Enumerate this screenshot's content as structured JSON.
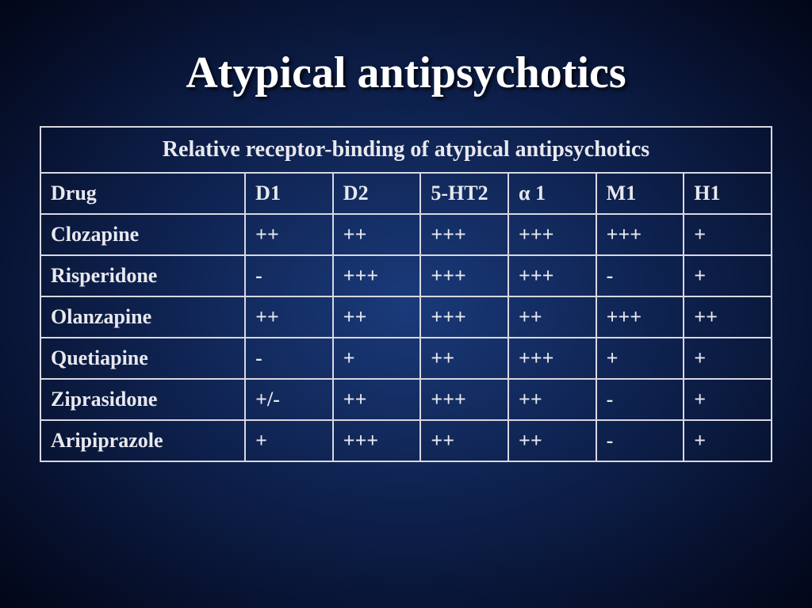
{
  "title": "Atypical antipsychotics",
  "table": {
    "subtitle": "Relative receptor-binding of atypical antipsychotics",
    "columns": [
      "Drug",
      "D1",
      "D2",
      "5-HT2",
      "α 1",
      "M1",
      "H1"
    ],
    "rows": [
      [
        "Clozapine",
        "++",
        "++",
        "+++",
        "+++",
        "+++",
        "+"
      ],
      [
        "Risperidone",
        "-",
        "+++",
        "+++",
        "+++",
        "-",
        "+"
      ],
      [
        "Olanzapine",
        "++",
        "++",
        "+++",
        "++",
        "+++",
        "++"
      ],
      [
        "Quetiapine",
        "-",
        "+",
        "++",
        "+++",
        "+",
        "+"
      ],
      [
        "Ziprasidone",
        "+/-",
        "++",
        "+++",
        "++",
        "-",
        "+"
      ],
      [
        "Aripiprazole",
        "+",
        "+++",
        "++",
        "++",
        "-",
        "+"
      ]
    ]
  },
  "style": {
    "title_color": "#ffffff",
    "text_color": "#e8e8ee",
    "border_color": "#d8d8e0",
    "bg_gradient_inner": "#1a3a7a",
    "bg_gradient_mid": "#0d1f4a",
    "bg_gradient_outer": "#020617",
    "title_fontsize": 56,
    "cell_fontsize": 26,
    "subtitle_fontsize": 28,
    "font_family": "Times New Roman"
  }
}
